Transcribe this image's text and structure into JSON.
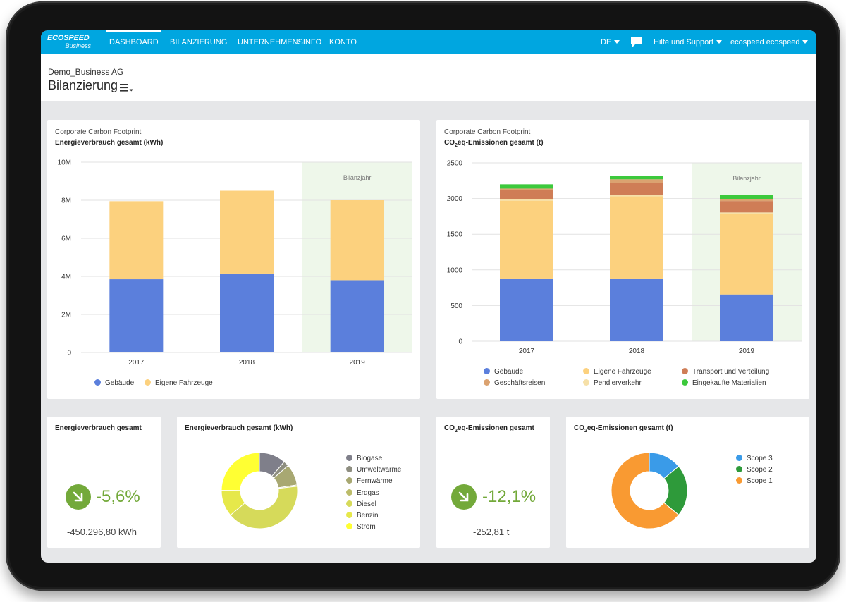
{
  "app": {
    "logo_main": "ECOSPEED",
    "logo_sub": "Business",
    "nav": [
      "DASHBOARD",
      "BILANZIERUNG",
      "UNTERNEHMENSINFO",
      "KONTO"
    ],
    "language": "DE",
    "support": "Hilfe und Support",
    "user": "ecospeed ecospeed"
  },
  "header": {
    "company": "Demo_Business AG",
    "title": "Bilanzierung"
  },
  "colors": {
    "nav": "#00a6e0",
    "gebaeude": "#5b7fdc",
    "fahrzeuge": "#fcd17e",
    "transport": "#cf7d56",
    "geschaeftsreisen": "#dba270",
    "pendler": "#f6e0a8",
    "materialien": "#3cc93c",
    "kpi": "#73a93a"
  },
  "charts": {
    "energy": {
      "subtitle": "Corporate Carbon Footprint",
      "title": "Energieverbrauch gesamt (kWh)",
      "highlight_label": "Bilanzjahr"
    },
    "co2": {
      "subtitle": "Corporate Carbon Footprint",
      "title_prefix": "CO",
      "title_sub": "2",
      "title_suffix": "eq-Emissionen gesamt (t)",
      "highlight_label": "Bilanzjahr"
    }
  },
  "chart_data": [
    {
      "type": "bar",
      "stacked": true,
      "title": "Energieverbrauch gesamt (kWh)",
      "categories": [
        "2017",
        "2018",
        "2019"
      ],
      "series": [
        {
          "name": "Gebäude",
          "values": [
            3850000,
            4150000,
            3800000
          ]
        },
        {
          "name": "Eigene Fahrzeuge",
          "values": [
            4100000,
            4350000,
            4200000
          ]
        }
      ],
      "yticks": [
        "0",
        "2M",
        "4M",
        "6M",
        "8M",
        "10M"
      ],
      "ylim": [
        0,
        10000000
      ],
      "grid": true,
      "legend": "bottom"
    },
    {
      "type": "bar",
      "stacked": true,
      "title": "CO2eq-Emissionen gesamt (t)",
      "categories": [
        "2017",
        "2018",
        "2019"
      ],
      "series": [
        {
          "name": "Gebäude",
          "values": [
            870,
            870,
            655
          ]
        },
        {
          "name": "Eigene Fahrzeuge",
          "values": [
            1100,
            1160,
            1130
          ]
        },
        {
          "name": "Pendlerverkehr",
          "values": [
            20,
            20,
            20
          ]
        },
        {
          "name": "Transport und Verteilung",
          "values": [
            130,
            170,
            160
          ]
        },
        {
          "name": "Geschäftsreisen",
          "values": [
            20,
            50,
            30
          ]
        },
        {
          "name": "Eingekaufte Materialien",
          "values": [
            60,
            50,
            60
          ]
        }
      ],
      "legend_order": [
        "Gebäude",
        "Eigene Fahrzeuge",
        "Transport und Verteilung",
        "Geschäftsreisen",
        "Pendlerverkehr",
        "Eingekaufte Materialien"
      ],
      "yticks": [
        "0",
        "500",
        "1000",
        "1500",
        "2000",
        "2500"
      ],
      "ylim": [
        0,
        2500
      ],
      "grid": true,
      "legend": "bottom"
    },
    {
      "type": "pie",
      "title": "Energieverbrauch gesamt (kWh)",
      "donut": true,
      "labels": [
        "Biogase",
        "Umweltwärme",
        "Fernwärme",
        "Erdgas",
        "Diesel",
        "Benzin",
        "Strom"
      ],
      "values": [
        10,
        2,
        8,
        0.5,
        36,
        10,
        22
      ],
      "colors": [
        "#7f7f8a",
        "#8e8e80",
        "#a8a872",
        "#bcbc6a",
        "#d6da5a",
        "#e6e84a",
        "#ffff33"
      ]
    },
    {
      "type": "pie",
      "title": "CO2eq-Emissionen gesamt (t)",
      "donut": true,
      "labels": [
        "Scope 3",
        "Scope 2",
        "Scope 1"
      ],
      "values": [
        14,
        22,
        64
      ],
      "colors": [
        "#3a9be8",
        "#2e9a3a",
        "#f99a32"
      ]
    }
  ],
  "kpis": {
    "energy": {
      "title": "Energieverbrauch gesamt",
      "percent": "-5,6%",
      "absolute": "-450.296,80 kWh"
    },
    "co2": {
      "title_prefix": "CO",
      "title_sub": "2",
      "title_suffix": "eq-Emissionen gesamt",
      "percent": "-12,1%",
      "absolute": "-252,81 t"
    }
  },
  "donut_titles": {
    "energy": "Energieverbrauch gesamt (kWh)",
    "co2_prefix": "CO",
    "co2_sub": "2",
    "co2_suffix": "eq-Emissionen gesamt (t)"
  }
}
